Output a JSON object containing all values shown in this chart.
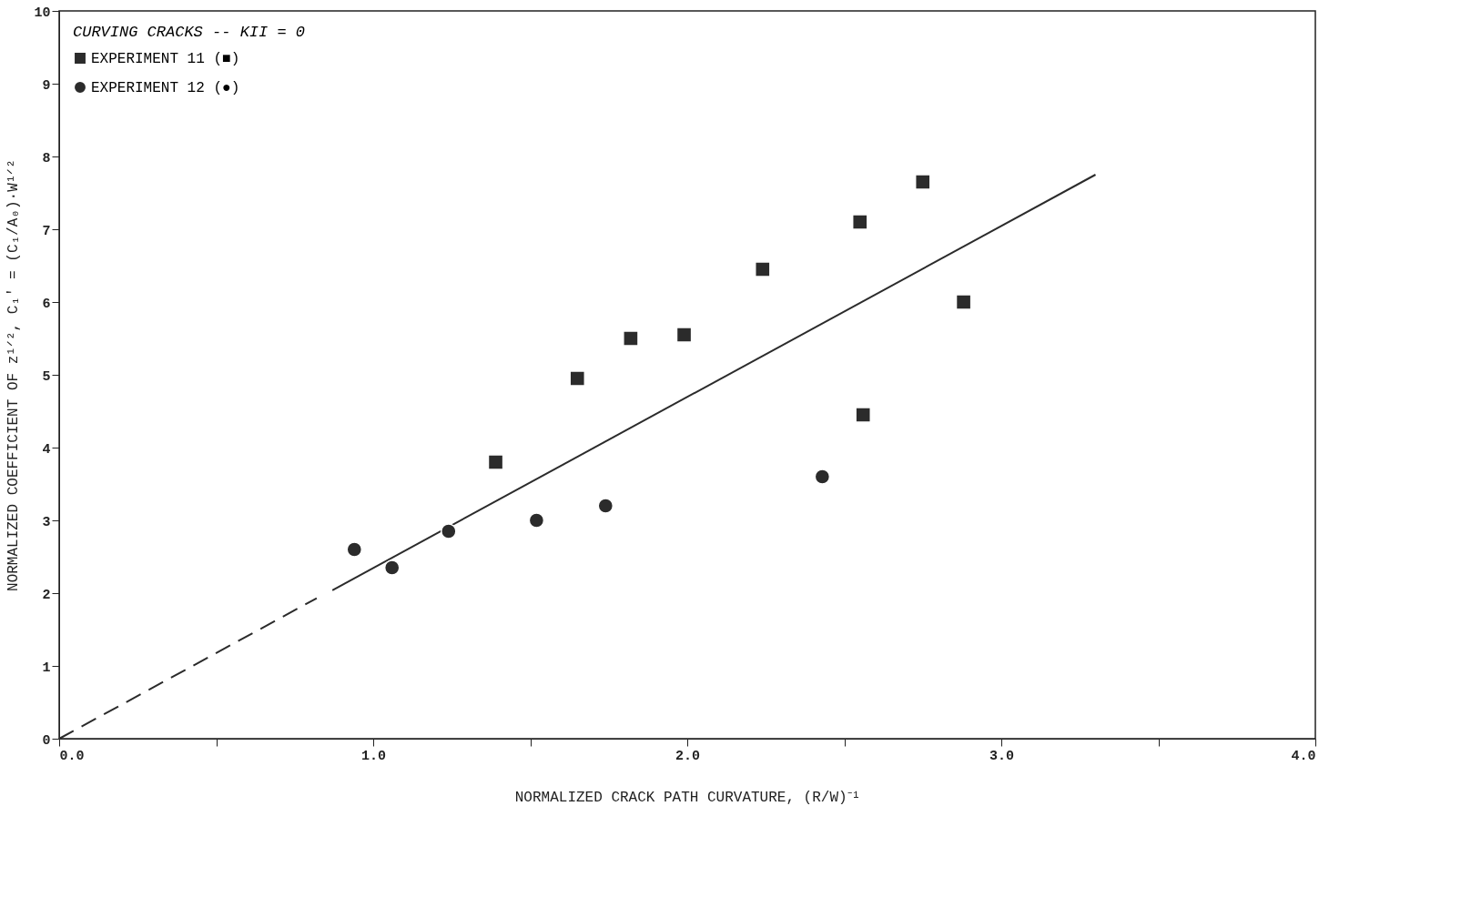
{
  "chart_data": {
    "type": "scatter",
    "xlabel": "NORMALIZED CRACK PATH CURVATURE, (R/W)⁻¹",
    "ylabel": "NORMALIZED COEFFICIENT OF z¹ᐟ², C₁' = (C₁/A₀)·W¹ᐟ²",
    "legend_title": "CURVING CRACKS -- KII = 0",
    "legend": "top left",
    "grid": false,
    "xlim": [
      0,
      4
    ],
    "ylim": [
      0,
      10
    ],
    "xticks": [
      {
        "value": 0,
        "label": "0.0"
      },
      {
        "value": 0.5,
        "label": null
      },
      {
        "value": 1,
        "label": "1.0"
      },
      {
        "value": 1.5,
        "label": null
      },
      {
        "value": 2,
        "label": "2.0"
      },
      {
        "value": 2.5,
        "label": null
      },
      {
        "value": 3,
        "label": "3.0"
      },
      {
        "value": 3.5,
        "label": null
      },
      {
        "value": 4,
        "label": "4.0"
      }
    ],
    "yticks": [
      0,
      1,
      2,
      3,
      4,
      5,
      6,
      7,
      8,
      9,
      10
    ],
    "series": [
      {
        "name": "EXPERIMENT 11 (■)",
        "marker": "square",
        "color": "#2b2b2b",
        "x": [
          1.39,
          1.65,
          1.82,
          1.99,
          2.24,
          2.55,
          2.75,
          2.88,
          2.56
        ],
        "values": [
          3.8,
          4.95,
          5.5,
          5.55,
          6.45,
          7.1,
          7.65,
          6.0,
          4.45
        ]
      },
      {
        "name": "EXPERIMENT 12 (●)",
        "marker": "circle",
        "color": "#2b2b2b",
        "x": [
          0.94,
          1.06,
          1.24,
          1.52,
          1.74,
          2.43
        ],
        "values": [
          2.6,
          2.35,
          2.85,
          3.0,
          3.2,
          3.6
        ]
      },
      {
        "type": "line",
        "line_style": "dashed",
        "color": "#2b2b2b",
        "x": [
          0,
          0.82
        ],
        "values": [
          0,
          1.93
        ]
      },
      {
        "type": "line",
        "line_style": "solid",
        "color": "#2b2b2b",
        "x": [
          0.87,
          3.3
        ],
        "values": [
          2.04,
          7.75
        ]
      }
    ]
  }
}
